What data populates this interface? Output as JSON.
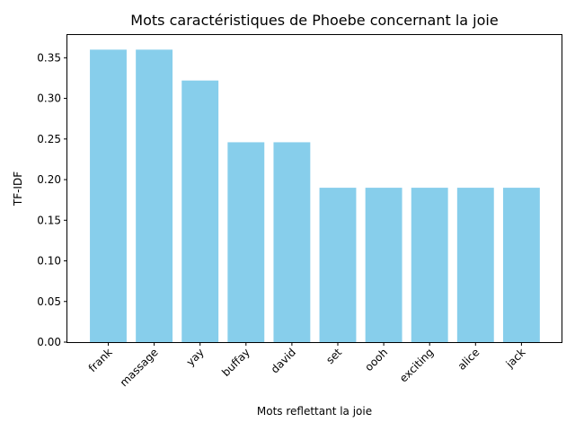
{
  "chart_data": {
    "type": "bar",
    "title": "Mots caractéristiques de Phoebe concernant la joie",
    "xlabel": "Mots reflettant la joie",
    "ylabel": "TF-IDF",
    "categories": [
      "frank",
      "massage",
      "yay",
      "buffay",
      "david",
      "set",
      "oooh",
      "exciting",
      "alice",
      "jack"
    ],
    "values": [
      0.36,
      0.36,
      0.322,
      0.246,
      0.246,
      0.19,
      0.19,
      0.19,
      0.19,
      0.19
    ],
    "ylim": [
      0,
      0.378
    ],
    "yticks": [
      "0.00",
      "0.05",
      "0.10",
      "0.15",
      "0.20",
      "0.25",
      "0.30",
      "0.35"
    ],
    "bar_color": "#87ceeb",
    "grid": false,
    "legend": "none"
  }
}
